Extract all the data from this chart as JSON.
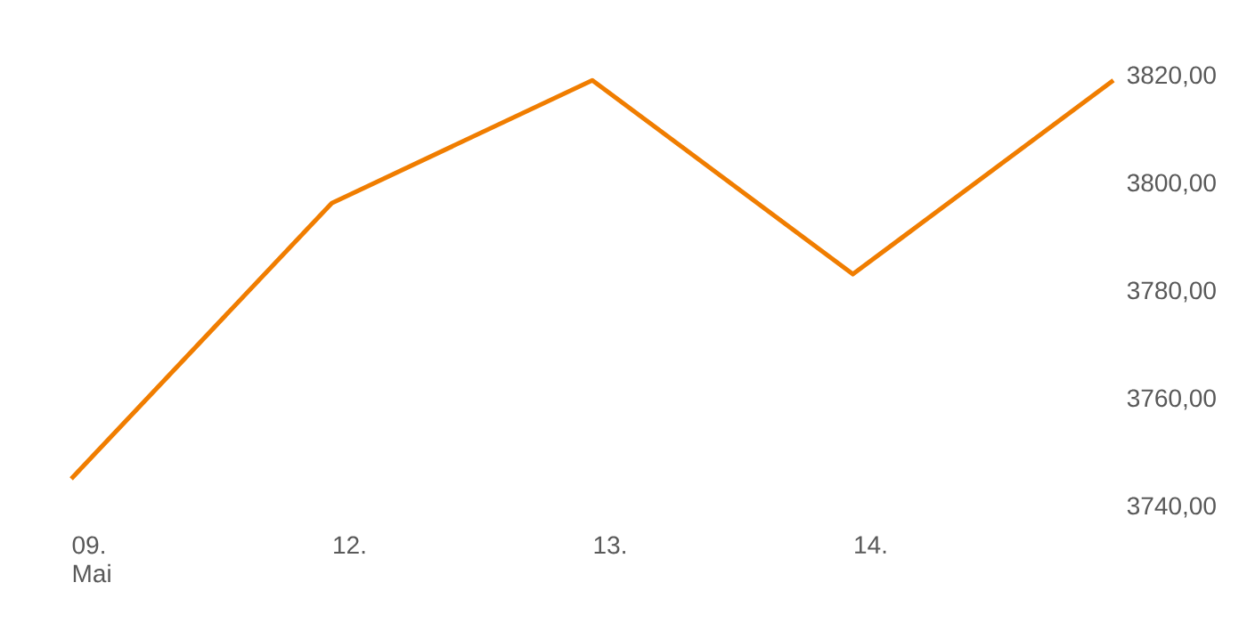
{
  "chart_data": {
    "type": "line",
    "categories": [
      "09. Mai",
      "12.",
      "13.",
      "14.",
      null
    ],
    "series": [
      {
        "color": "#f07d00",
        "values": [
          3745.3,
          3796.5,
          3819.3,
          3783.3,
          3819.3
        ]
      }
    ],
    "ylim": [
      3740,
      3820
    ],
    "yticks": [
      {
        "value": 3740,
        "label": "3740,00"
      },
      {
        "value": 3760,
        "label": "3760,00"
      },
      {
        "value": 3780,
        "label": "3780,00"
      },
      {
        "value": 3800,
        "label": "3800,00"
      },
      {
        "value": 3820,
        "label": "3820,00"
      }
    ]
  }
}
